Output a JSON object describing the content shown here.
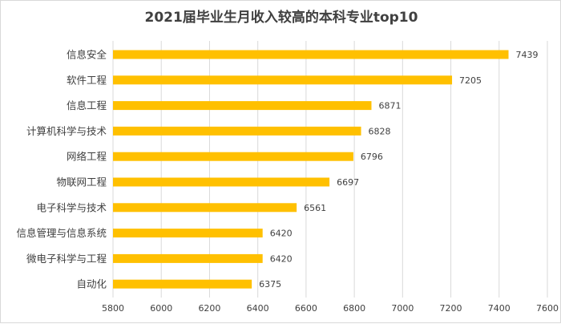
{
  "chart_data": {
    "type": "bar",
    "orientation": "horizontal",
    "title": "2021届毕业生月收入较高的本科专业top10",
    "categories": [
      "信息安全",
      "软件工程",
      "信息工程",
      "计算机科学与技术",
      "网络工程",
      "物联网工程",
      "电子科学与技术",
      "信息管理与信息系统",
      "微电子科学与工程",
      "自动化"
    ],
    "values": [
      7439,
      7205,
      6871,
      6828,
      6796,
      6697,
      6561,
      6420,
      6420,
      6375
    ],
    "xlim": [
      5800,
      7600
    ],
    "xticks": [
      5800,
      6000,
      6200,
      6400,
      6600,
      6800,
      7000,
      7200,
      7400,
      7600
    ],
    "grid": "vertical",
    "legend": "none",
    "bar_color": "#FFC000",
    "grid_color": "#d9d9d9"
  }
}
